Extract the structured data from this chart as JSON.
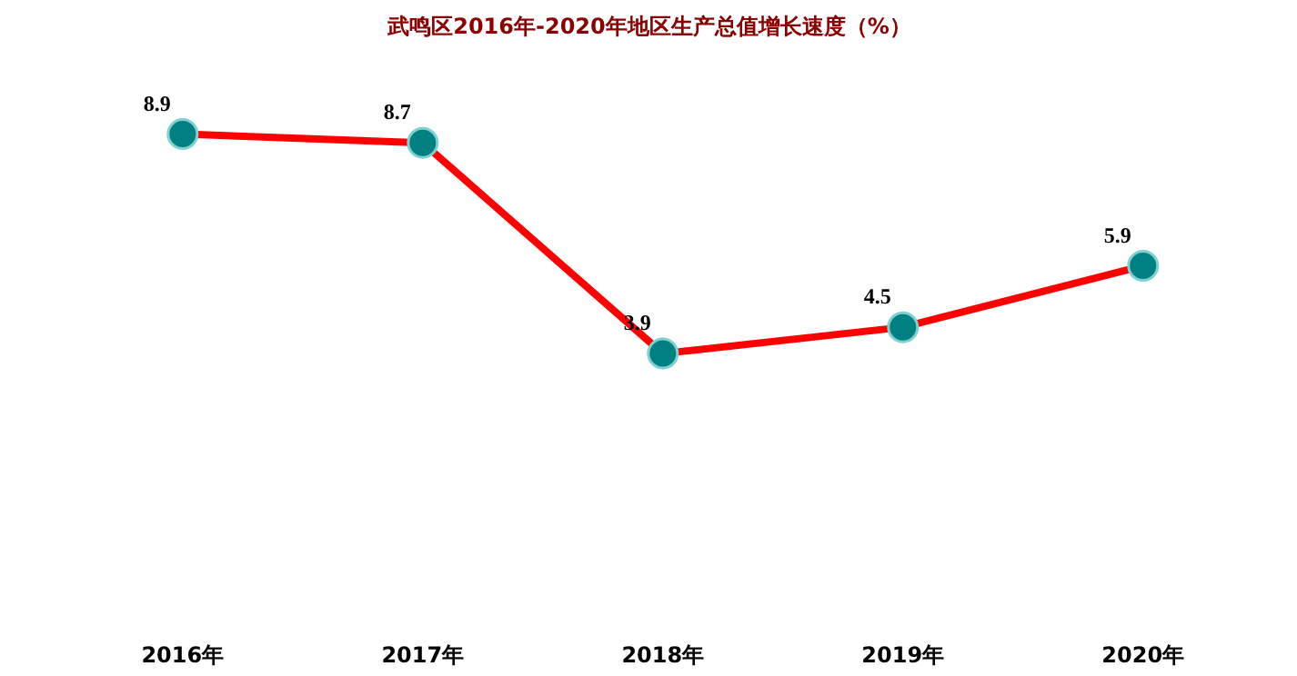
{
  "chart_data": {
    "type": "line",
    "title": "武鸣区2016年-2020年地区生产总值增长速度（%）",
    "categories": [
      "2016年",
      "2017年",
      "2018年",
      "2019年",
      "2020年"
    ],
    "series": [
      {
        "color": "#ff0000",
        "values": [
          8.9,
          8.7,
          3.9,
          4.5,
          5.9
        ]
      }
    ],
    "marker": "circle",
    "data_labels": true,
    "grid": false,
    "tick_labels": "x"
  }
}
